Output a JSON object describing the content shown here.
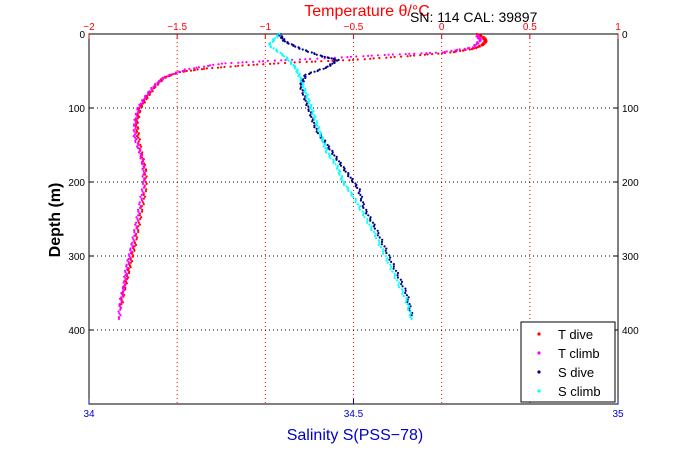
{
  "header": {
    "top_title": "Temperature θ/°C",
    "sn_cal": "SN: 114  CAL: 39897"
  },
  "chart_data": {
    "type": "scatter",
    "ylabel": "Depth (m)",
    "xlabel_bottom": "Salinity S(PSS−78)",
    "xlabel_top": "Temperature θ/°C",
    "ylim": [
      500,
      0
    ],
    "y_ticks": [
      0,
      100,
      200,
      300,
      400
    ],
    "x_bottom": {
      "lim": [
        34,
        35
      ],
      "ticks": [
        34,
        34.5,
        35
      ],
      "tick_labels": [
        "34",
        "34.5",
        "35"
      ]
    },
    "x_top": {
      "lim": [
        -2,
        1
      ],
      "ticks": [
        -2,
        -1.5,
        -1,
        -0.5,
        0,
        0.5,
        1
      ],
      "tick_labels": [
        "−2",
        "−1.5",
        "−1",
        "−0.5",
        "0",
        "0.5",
        "1"
      ]
    },
    "grid": true,
    "legend_position": "bottom-right",
    "series": [
      {
        "name": "T dive",
        "axis": "top",
        "color": "#ff0000",
        "x": [
          0.2,
          0.24,
          0.25,
          0.23,
          0.18,
          0.05,
          -0.2,
          -0.5,
          -0.8,
          -1.1,
          -1.35,
          -1.5,
          -1.58,
          -1.63,
          -1.67,
          -1.71,
          -1.73,
          -1.72,
          -1.7,
          -1.68,
          -1.68,
          -1.7,
          -1.72,
          -1.74,
          -1.76,
          -1.78,
          -1.8,
          -1.82
        ],
        "y": [
          0,
          5,
          10,
          15,
          20,
          25,
          30,
          35,
          38,
          42,
          47,
          52,
          60,
          72,
          85,
          100,
          120,
          140,
          165,
          185,
          210,
          235,
          260,
          285,
          305,
          325,
          345,
          370
        ]
      },
      {
        "name": "T climb",
        "axis": "top",
        "color": "#ff00ff",
        "x": [
          0.2,
          0.22,
          0.18,
          0.0,
          -0.3,
          -0.6,
          -0.95,
          -1.25,
          -1.45,
          -1.57,
          -1.63,
          -1.68,
          -1.72,
          -1.74,
          -1.74,
          -1.71,
          -1.69,
          -1.69,
          -1.71,
          -1.73,
          -1.75,
          -1.77,
          -1.79,
          -1.8,
          -1.82,
          -1.83
        ],
        "y": [
          2,
          8,
          18,
          25,
          28,
          32,
          36,
          40,
          48,
          58,
          70,
          85,
          100,
          120,
          140,
          160,
          180,
          205,
          230,
          255,
          280,
          300,
          320,
          340,
          360,
          385
        ]
      },
      {
        "name": "S dive",
        "axis": "bottom",
        "color": "#00008b",
        "x": [
          34.36,
          34.37,
          34.4,
          34.44,
          34.47,
          34.45,
          34.41,
          34.4,
          34.41,
          34.42,
          34.43,
          34.45,
          34.47,
          34.49,
          34.51,
          34.52,
          34.54,
          34.56,
          34.58,
          34.6,
          34.61
        ],
        "y": [
          0,
          10,
          20,
          30,
          35,
          45,
          55,
          70,
          90,
          110,
          130,
          150,
          170,
          190,
          210,
          235,
          260,
          290,
          320,
          350,
          380
        ]
      },
      {
        "name": "S climb",
        "axis": "bottom",
        "color": "#00ffff",
        "x": [
          34.36,
          34.34,
          34.37,
          34.39,
          34.4,
          34.41,
          34.42,
          34.43,
          34.44,
          34.45,
          34.47,
          34.48,
          34.5,
          34.52,
          34.54,
          34.56,
          34.58,
          34.6,
          34.61
        ],
        "y": [
          0,
          15,
          30,
          45,
          60,
          80,
          100,
          120,
          140,
          160,
          180,
          200,
          220,
          245,
          270,
          300,
          330,
          360,
          385
        ]
      }
    ]
  }
}
